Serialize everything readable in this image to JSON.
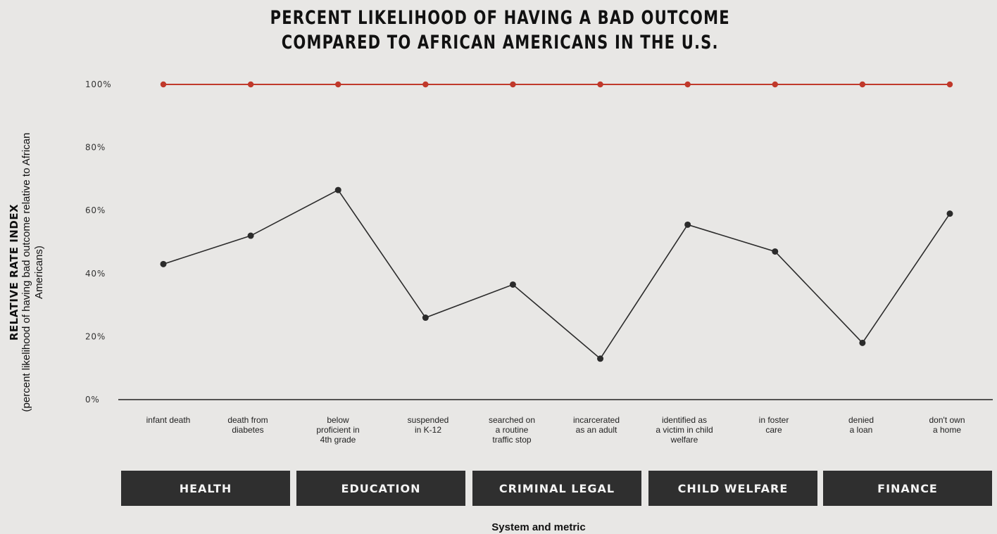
{
  "title": {
    "line1": "PERCENT LIKELIHOOD OF HAVING A BAD OUTCOME",
    "line2": "COMPARED TO AFRICAN AMERICANS IN THE U.S."
  },
  "colors": {
    "background": "#e8e7e5",
    "reference_line": "#c0392b",
    "data_line": "#2b2b2b",
    "category_bar": "#2f2f2f"
  },
  "systems": [
    "HEALTH",
    "EDUCATION",
    "CRIMINAL LEGAL",
    "CHILD WELFARE",
    "FINANCE"
  ],
  "chart_data": {
    "type": "line",
    "title": "PERCENT LIKELIHOOD OF HAVING A BAD OUTCOME COMPARED TO AFRICAN AMERICANS IN THE U.S.",
    "ylabel": "RELATIVE RATE INDEX",
    "ylabel_sub": "(percent likelihood of having bad outcome relative to African Americans)",
    "xlabel": "System and metric",
    "ylim": [
      0,
      100
    ],
    "yticks": [
      0,
      20,
      40,
      60,
      80,
      100
    ],
    "ytick_labels": [
      "0%",
      "20%",
      "40%",
      "60%",
      "80%",
      "100%"
    ],
    "grid": false,
    "categories": [
      "infant death",
      "death from diabetes",
      "below proficient in 4th grade",
      "suspended in K-12",
      "searched on a routine traffic stop",
      "incarcerated as an adult",
      "identified as a victim in child welfare",
      "in foster care",
      "denied a loan",
      "don't own a home"
    ],
    "category_labels": [
      [
        "infant death"
      ],
      [
        "death from",
        "diabetes"
      ],
      [
        "below",
        "proficient in",
        "4th grade"
      ],
      [
        "suspended",
        "in K-12"
      ],
      [
        "searched on",
        "a routine",
        "traffic stop"
      ],
      [
        "incarcerated",
        "as an adult"
      ],
      [
        "identified as",
        "a victim in child",
        "welfare"
      ],
      [
        "in foster",
        "care"
      ],
      [
        "denied",
        "a loan"
      ],
      [
        "don't own",
        "a home"
      ]
    ],
    "series": [
      {
        "values": [
          100,
          100,
          100,
          100,
          100,
          100,
          100,
          100,
          100,
          100
        ]
      },
      {
        "values": [
          43,
          52,
          66.5,
          26,
          36.5,
          13,
          55.5,
          47,
          18,
          59
        ]
      }
    ]
  }
}
